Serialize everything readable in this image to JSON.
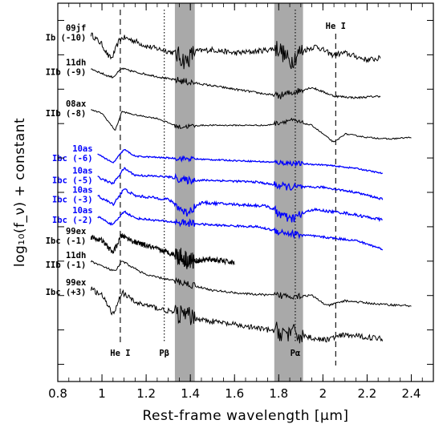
{
  "chart_data": {
    "type": "line",
    "title": "",
    "xlabel": "Rest-frame wavelength [μm]",
    "ylabel": "log₁₀(f_ν) + constant",
    "xlim": [
      0.8,
      2.5
    ],
    "xticks": [
      {
        "value": 0.8,
        "label": "0.8"
      },
      {
        "value": 1.0,
        "label": "1"
      },
      {
        "value": 1.2,
        "label": "1.2"
      },
      {
        "value": 1.4,
        "label": "1.4"
      },
      {
        "value": 1.6,
        "label": "1.6"
      },
      {
        "value": 1.8,
        "label": "1.8"
      },
      {
        "value": 2.0,
        "label": "2"
      },
      {
        "value": 2.2,
        "label": "2.2"
      },
      {
        "value": 2.4,
        "label": "2.4"
      }
    ],
    "ylim": [
      -10.5,
      0.5
    ],
    "grid": false,
    "shaded_regions": [
      {
        "x0": 1.33,
        "x1": 1.42,
        "color": "#a9a9a9"
      },
      {
        "x0": 1.78,
        "x1": 1.91,
        "color": "#a9a9a9"
      }
    ],
    "reference_lines": [
      {
        "x": 1.083,
        "style": "dashed",
        "label": "He I",
        "label_position": "bottom"
      },
      {
        "x": 1.282,
        "style": "dotted",
        "label": "Pβ",
        "label_position": "bottom"
      },
      {
        "x": 1.875,
        "style": "dotted",
        "label": "Pα",
        "label_position": "bottom"
      },
      {
        "x": 2.058,
        "style": "dashed",
        "label": "He I",
        "label_position": "top"
      }
    ],
    "series": [
      {
        "name": "09jf",
        "subtype": "Ib (-10)",
        "color": "#000000",
        "noise": 0.08,
        "x_range": [
          0.95,
          2.26
        ],
        "profile": [
          [
            0.95,
            -0.4
          ],
          [
            1.0,
            -0.7
          ],
          [
            1.03,
            -1.05
          ],
          [
            1.045,
            -1.1
          ],
          [
            1.08,
            -0.55
          ],
          [
            1.1,
            -0.5
          ],
          [
            1.15,
            -0.6
          ],
          [
            1.2,
            -0.75
          ],
          [
            1.27,
            -0.85
          ],
          [
            1.33,
            -0.95
          ],
          [
            1.38,
            -1.2
          ],
          [
            1.42,
            -0.9
          ],
          [
            1.5,
            -0.85
          ],
          [
            1.6,
            -0.95
          ],
          [
            1.7,
            -0.9
          ],
          [
            1.8,
            -0.8
          ],
          [
            1.85,
            -1.2
          ],
          [
            1.9,
            -0.9
          ],
          [
            1.97,
            -0.75
          ],
          [
            2.04,
            -1.0
          ],
          [
            2.1,
            -0.95
          ],
          [
            2.2,
            -1.15
          ],
          [
            2.26,
            -1.1
          ]
        ]
      },
      {
        "name": "11dh",
        "subtype": "IIb (-9)",
        "color": "#000000",
        "noise": 0.03,
        "x_range": [
          0.95,
          2.26
        ],
        "profile": [
          [
            0.95,
            -1.4
          ],
          [
            1.02,
            -1.6
          ],
          [
            1.05,
            -1.65
          ],
          [
            1.09,
            -1.4
          ],
          [
            1.15,
            -1.5
          ],
          [
            1.3,
            -1.7
          ],
          [
            1.5,
            -1.9
          ],
          [
            1.7,
            -2.1
          ],
          [
            1.8,
            -2.2
          ],
          [
            1.95,
            -1.95
          ],
          [
            2.05,
            -2.2
          ],
          [
            2.15,
            -2.25
          ],
          [
            2.26,
            -2.2
          ]
        ]
      },
      {
        "name": "08ax",
        "subtype": "IIb (-8)",
        "color": "#000000",
        "noise": 0.02,
        "x_range": [
          0.95,
          2.4
        ],
        "profile": [
          [
            0.95,
            -2.6
          ],
          [
            1.0,
            -2.7
          ],
          [
            1.06,
            -3.2
          ],
          [
            1.09,
            -2.65
          ],
          [
            1.15,
            -2.75
          ],
          [
            1.25,
            -2.85
          ],
          [
            1.35,
            -3.1
          ],
          [
            1.45,
            -3.05
          ],
          [
            1.6,
            -3.05
          ],
          [
            1.75,
            -3.05
          ],
          [
            1.85,
            -2.9
          ],
          [
            1.95,
            -3.05
          ],
          [
            2.05,
            -3.55
          ],
          [
            2.1,
            -3.3
          ],
          [
            2.2,
            -3.4
          ],
          [
            2.3,
            -3.45
          ],
          [
            2.4,
            -3.4
          ]
        ]
      },
      {
        "name": "10as",
        "subtype": "Ibc (-6)",
        "color": "#0000ff",
        "noise": 0.02,
        "x_range": [
          0.98,
          2.27
        ],
        "profile": [
          [
            0.98,
            -3.9
          ],
          [
            1.0,
            -3.95
          ],
          [
            1.05,
            -4.15
          ],
          [
            1.1,
            -3.75
          ],
          [
            1.15,
            -3.95
          ],
          [
            1.3,
            -4.0
          ],
          [
            1.5,
            -4.05
          ],
          [
            1.7,
            -4.1
          ],
          [
            1.85,
            -4.15
          ],
          [
            2.0,
            -4.2
          ],
          [
            2.15,
            -4.3
          ],
          [
            2.27,
            -4.45
          ]
        ]
      },
      {
        "name": "10as",
        "subtype": "Ibc (-5)",
        "color": "#0000ff",
        "noise": 0.03,
        "x_range": [
          0.98,
          2.27
        ],
        "profile": [
          [
            0.98,
            -4.55
          ],
          [
            1.05,
            -4.75
          ],
          [
            1.1,
            -4.3
          ],
          [
            1.15,
            -4.5
          ],
          [
            1.3,
            -4.55
          ],
          [
            1.38,
            -4.65
          ],
          [
            1.5,
            -4.65
          ],
          [
            1.7,
            -4.7
          ],
          [
            1.85,
            -4.85
          ],
          [
            2.0,
            -4.85
          ],
          [
            2.15,
            -5.0
          ],
          [
            2.27,
            -5.2
          ]
        ]
      },
      {
        "name": "10as",
        "subtype": "Ibc (-3)",
        "color": "#0000ff",
        "noise": 0.04,
        "x_range": [
          0.98,
          2.27
        ],
        "profile": [
          [
            0.98,
            -5.1
          ],
          [
            1.05,
            -5.35
          ],
          [
            1.1,
            -4.9
          ],
          [
            1.15,
            -5.1
          ],
          [
            1.3,
            -5.2
          ],
          [
            1.38,
            -5.6
          ],
          [
            1.45,
            -5.3
          ],
          [
            1.6,
            -5.35
          ],
          [
            1.75,
            -5.4
          ],
          [
            1.85,
            -5.8
          ],
          [
            1.95,
            -5.5
          ],
          [
            2.1,
            -5.6
          ],
          [
            2.27,
            -5.8
          ]
        ]
      },
      {
        "name": "10as",
        "subtype": "Ibc (-2)",
        "color": "#0000ff",
        "noise": 0.03,
        "x_range": [
          0.98,
          2.27
        ],
        "profile": [
          [
            0.98,
            -5.7
          ],
          [
            1.05,
            -5.95
          ],
          [
            1.1,
            -5.55
          ],
          [
            1.15,
            -5.75
          ],
          [
            1.3,
            -5.85
          ],
          [
            1.5,
            -5.95
          ],
          [
            1.7,
            -6.0
          ],
          [
            1.85,
            -6.2
          ],
          [
            2.0,
            -6.3
          ],
          [
            2.15,
            -6.4
          ],
          [
            2.27,
            -6.65
          ]
        ]
      },
      {
        "name": "99ex",
        "subtype": "Ibc (-1)",
        "color": "#000000",
        "noise": 0.08,
        "x_range": [
          0.95,
          1.6
        ],
        "profile": [
          [
            0.95,
            -6.3
          ],
          [
            1.0,
            -6.4
          ],
          [
            1.05,
            -6.75
          ],
          [
            1.09,
            -6.25
          ],
          [
            1.15,
            -6.45
          ],
          [
            1.25,
            -6.65
          ],
          [
            1.35,
            -6.85
          ],
          [
            1.4,
            -7.0
          ],
          [
            1.5,
            -6.95
          ],
          [
            1.6,
            -7.05
          ]
        ]
      },
      {
        "name": "11dh",
        "subtype": "IIb (-1)",
        "color": "#000000",
        "noise": 0.03,
        "x_range": [
          0.95,
          2.4
        ],
        "profile": [
          [
            0.95,
            -7.0
          ],
          [
            1.02,
            -7.2
          ],
          [
            1.06,
            -7.3
          ],
          [
            1.09,
            -7.0
          ],
          [
            1.2,
            -7.4
          ],
          [
            1.35,
            -7.6
          ],
          [
            1.5,
            -7.85
          ],
          [
            1.65,
            -7.95
          ],
          [
            1.8,
            -8.0
          ],
          [
            1.95,
            -8.0
          ],
          [
            2.02,
            -8.3
          ],
          [
            2.1,
            -8.15
          ],
          [
            2.25,
            -8.25
          ],
          [
            2.4,
            -8.3
          ]
        ]
      },
      {
        "name": "99ex",
        "subtype": "Ibc (+3)",
        "color": "#000000",
        "noise": 0.08,
        "x_range": [
          0.95,
          2.27
        ],
        "profile": [
          [
            0.95,
            -7.8
          ],
          [
            1.0,
            -8.0
          ],
          [
            1.05,
            -8.55
          ],
          [
            1.09,
            -7.9
          ],
          [
            1.15,
            -8.2
          ],
          [
            1.3,
            -8.45
          ],
          [
            1.45,
            -8.7
          ],
          [
            1.6,
            -8.85
          ],
          [
            1.75,
            -9.0
          ],
          [
            1.9,
            -9.15
          ],
          [
            2.0,
            -9.3
          ],
          [
            2.1,
            -9.15
          ],
          [
            2.27,
            -9.25
          ]
        ]
      }
    ]
  }
}
